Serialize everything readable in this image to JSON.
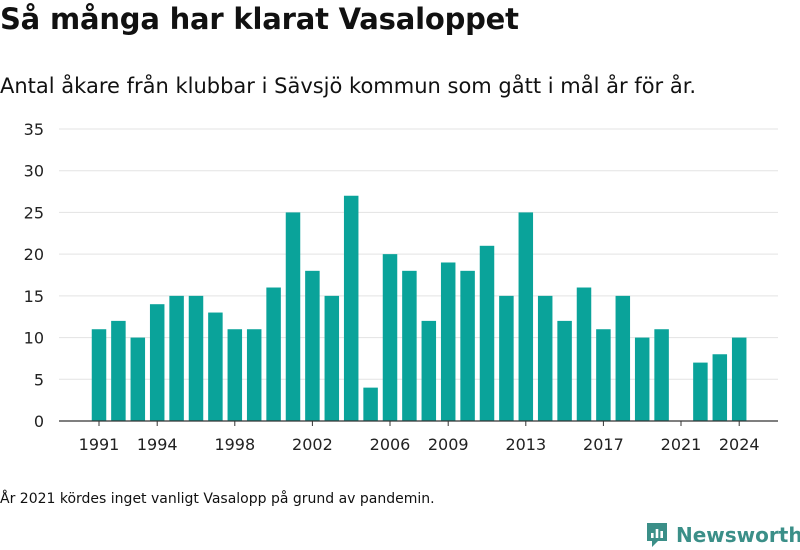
{
  "title": "Så många har klarat Vasaloppet",
  "subtitle": "Antal åkare från klubbar i Sävsjö kommun som gått i mål år för år.",
  "footnote": "År 2021 kördes inget vanligt Vasalopp på grund av pandemin.",
  "brand": {
    "name": "Newsworthy",
    "color": "#3b8f88"
  },
  "chart_data": {
    "type": "bar",
    "title": "Så många har klarat Vasaloppet",
    "subtitle": "Antal åkare från klubbar i Sävsjö kommun som gått i mål år för år.",
    "x": [
      1991,
      1992,
      1993,
      1994,
      1995,
      1996,
      1997,
      1998,
      1999,
      2000,
      2001,
      2002,
      2003,
      2004,
      2005,
      2006,
      2007,
      2008,
      2009,
      2010,
      2011,
      2012,
      2013,
      2014,
      2015,
      2016,
      2017,
      2018,
      2019,
      2020,
      2021,
      2022,
      2023,
      2024
    ],
    "values": [
      11,
      12,
      10,
      14,
      15,
      15,
      13,
      11,
      11,
      16,
      25,
      18,
      15,
      27,
      4,
      20,
      18,
      12,
      19,
      18,
      21,
      15,
      25,
      15,
      12,
      16,
      11,
      15,
      10,
      11,
      null,
      7,
      8,
      10
    ],
    "x_ticks": [
      "1991",
      "1994",
      "1998",
      "2002",
      "2006",
      "2009",
      "2013",
      "2017",
      "2021",
      "2024"
    ],
    "y_ticks": [
      "0",
      "5",
      "10",
      "15",
      "20",
      "25",
      "30",
      "35"
    ],
    "ylim": [
      0,
      35
    ],
    "grid": true,
    "bar_color": "#0aa39a"
  }
}
